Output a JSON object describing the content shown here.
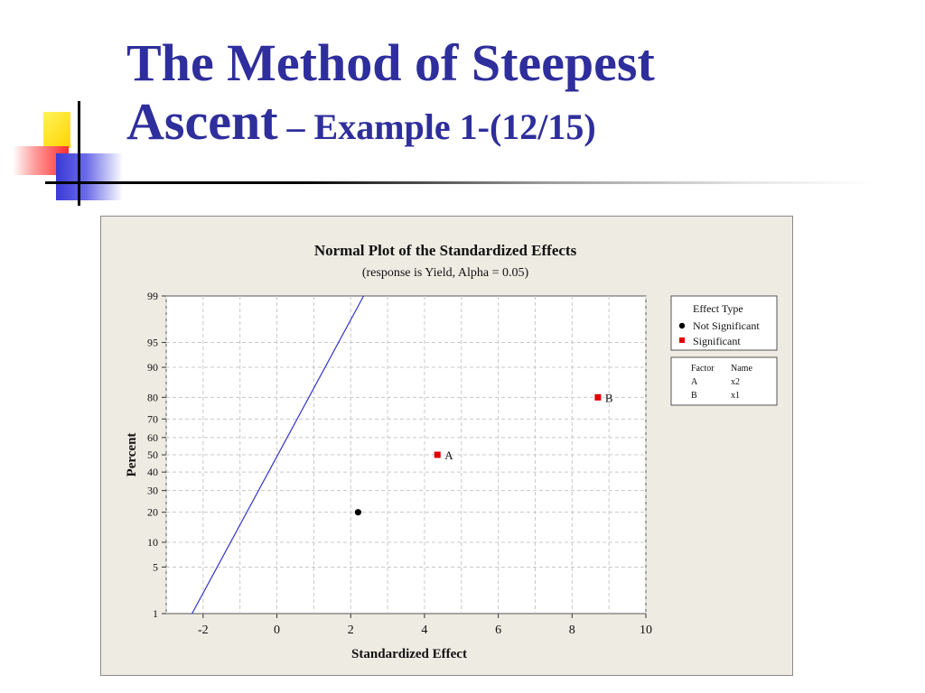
{
  "slide": {
    "title_line1": "The Method of Steepest",
    "title_line2_main": "Ascent",
    "title_line2_sub": " – Example 1-(12/15)"
  },
  "chart_data": {
    "type": "scatter",
    "title": "Normal Plot of the Standardized Effects",
    "subtitle": "(response is Yield, Alpha = 0.05)",
    "xlabel": "Standardized Effect",
    "ylabel": "Percent",
    "xlim": [
      -3,
      10
    ],
    "x_ticks": [
      -2,
      0,
      2,
      4,
      6,
      8,
      10
    ],
    "x_tick_labels": [
      "-2",
      "0",
      "2",
      "4",
      "6",
      "8",
      "10"
    ],
    "y_scale": "normal-probability",
    "y_ticks": [
      1,
      5,
      10,
      20,
      30,
      40,
      50,
      60,
      70,
      80,
      90,
      95,
      99
    ],
    "y_tick_labels": [
      "1",
      "5",
      "10",
      "20",
      "30",
      "40",
      "50",
      "60",
      "70",
      "80",
      "90",
      "95",
      "99"
    ],
    "grid": true,
    "points": [
      {
        "x": 2.2,
        "y": 20,
        "label": "",
        "effect_type": "Not Significant"
      },
      {
        "x": 4.35,
        "y": 50,
        "label": "A",
        "effect_type": "Significant"
      },
      {
        "x": 8.7,
        "y": 80,
        "label": "B",
        "effect_type": "Significant"
      }
    ],
    "reference_line": {
      "from": [
        -2.3,
        1
      ],
      "to": [
        2.35,
        99
      ],
      "color": "#3333cc"
    },
    "legend": {
      "placement": "right",
      "title": "Effect Type",
      "entries": [
        {
          "label": "Not Significant",
          "marker": "circle",
          "color": "#000000"
        },
        {
          "label": "Significant",
          "marker": "square",
          "color": "#e00000"
        }
      ]
    },
    "factor_table": {
      "headers": [
        "Factor",
        "Name"
      ],
      "rows": [
        [
          "A",
          "x2"
        ],
        [
          "B",
          "x1"
        ]
      ]
    }
  }
}
